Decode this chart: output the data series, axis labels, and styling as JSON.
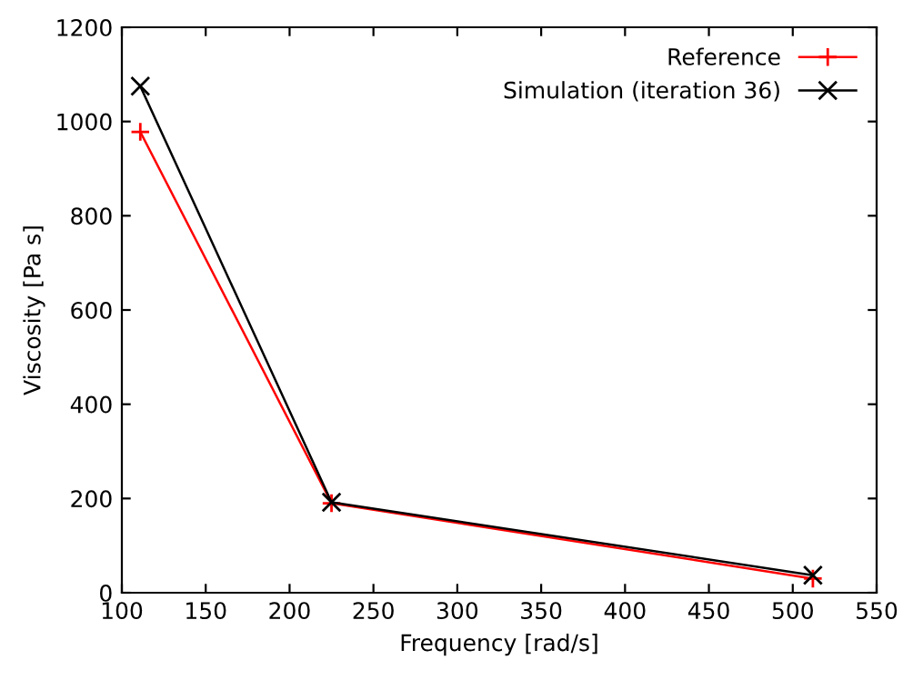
{
  "chart_data": {
    "type": "line",
    "xlabel": "Frequency [rad/s]",
    "ylabel": "Viscosity [Pa s]",
    "xlim": [
      100,
      550
    ],
    "xticks": [
      100,
      150,
      200,
      250,
      300,
      350,
      400,
      450,
      500,
      550
    ],
    "ylim": [
      0,
      1200
    ],
    "yticks": [
      0,
      200,
      400,
      600,
      800,
      1000,
      1200
    ],
    "grid": false,
    "legend": "top right",
    "line_style": "solid",
    "series": [
      {
        "name": "Reference",
        "color": "#ff0000",
        "marker": "plus",
        "x": [
          111,
          225,
          512
        ],
        "values": [
          978,
          190,
          30
        ]
      },
      {
        "name": "Simulation (iteration 36)",
        "color": "#000000",
        "marker": "cross",
        "x": [
          111,
          225,
          512
        ],
        "values": [
          1075,
          192,
          37
        ]
      }
    ]
  }
}
